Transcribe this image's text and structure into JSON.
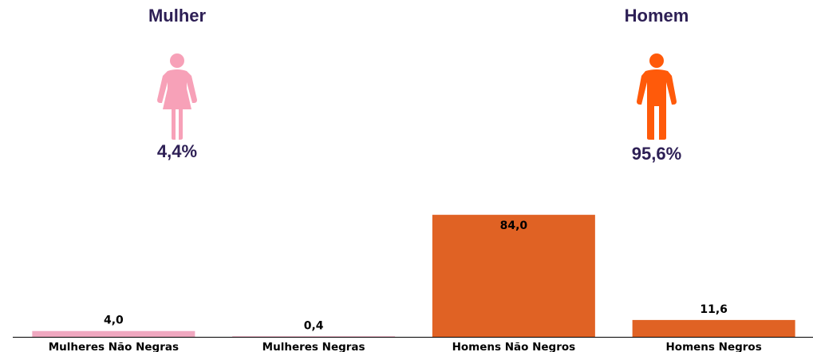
{
  "summary": {
    "female": {
      "title": "Mulher",
      "percent": "4,4%",
      "color": "#f7a1b8",
      "icon": "woman-icon"
    },
    "male": {
      "title": "Homem",
      "percent": "95,6%",
      "color": "#ff5a0a",
      "icon": "man-icon"
    }
  },
  "chart_data": {
    "type": "bar",
    "categories": [
      "Mulheres Não Negras",
      "Mulheres Negras",
      "Homens Não Negros",
      "Homens Negros"
    ],
    "values": [
      4.0,
      0.4,
      84.0,
      11.6
    ],
    "value_labels": [
      "4,0",
      "0,4",
      "84,0",
      "11,6"
    ],
    "colors": [
      "#f0a8c0",
      "#f0a8c0",
      "#e06224",
      "#e06224"
    ],
    "ylim": [
      0,
      100
    ],
    "grid": false,
    "title": "",
    "xlabel": "",
    "ylabel": ""
  }
}
